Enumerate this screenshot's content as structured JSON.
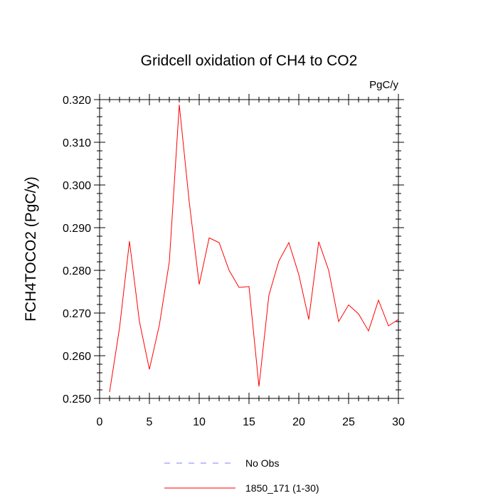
{
  "chart_data": {
    "type": "line",
    "title": "Gridcell oxidation of CH4 to CO2",
    "units": "PgC/y",
    "ylabel": "FCH4TOCO2  (PgC/y)",
    "xlabel": "",
    "xlim": [
      0,
      30
    ],
    "ylim": [
      0.25,
      0.32
    ],
    "xticks": [
      0,
      5,
      10,
      15,
      20,
      25,
      30
    ],
    "yticks": [
      0.25,
      0.26,
      0.27,
      0.28,
      0.29,
      0.3,
      0.31,
      0.32
    ],
    "ytick_labels": [
      "0.250",
      "0.260",
      "0.270",
      "0.280",
      "0.290",
      "0.300",
      "0.310",
      "0.320"
    ],
    "series": [
      {
        "name": "1850_171 (1-30)",
        "color": "#ff0000",
        "dash": "solid",
        "x": [
          1,
          2,
          3,
          4,
          5,
          6,
          7,
          8,
          9,
          10,
          11,
          12,
          13,
          14,
          15,
          16,
          17,
          18,
          19,
          20,
          21,
          22,
          23,
          24,
          25,
          26,
          27,
          28,
          29,
          30
        ],
        "values": [
          0.2515,
          0.2665,
          0.2868,
          0.268,
          0.2568,
          0.2672,
          0.282,
          0.3188,
          0.296,
          0.2767,
          0.2876,
          0.2865,
          0.28,
          0.276,
          0.2762,
          0.2528,
          0.2742,
          0.2822,
          0.2865,
          0.279,
          0.2685,
          0.2867,
          0.28,
          0.268,
          0.2719,
          0.2698,
          0.2658,
          0.273,
          0.267,
          0.2685
        ]
      }
    ],
    "legend": [
      {
        "label": "No Obs",
        "color": "#8080ff",
        "dash": "dashed"
      },
      {
        "label": "1850_171 (1-30)",
        "color": "#ff0000",
        "dash": "solid"
      }
    ]
  }
}
